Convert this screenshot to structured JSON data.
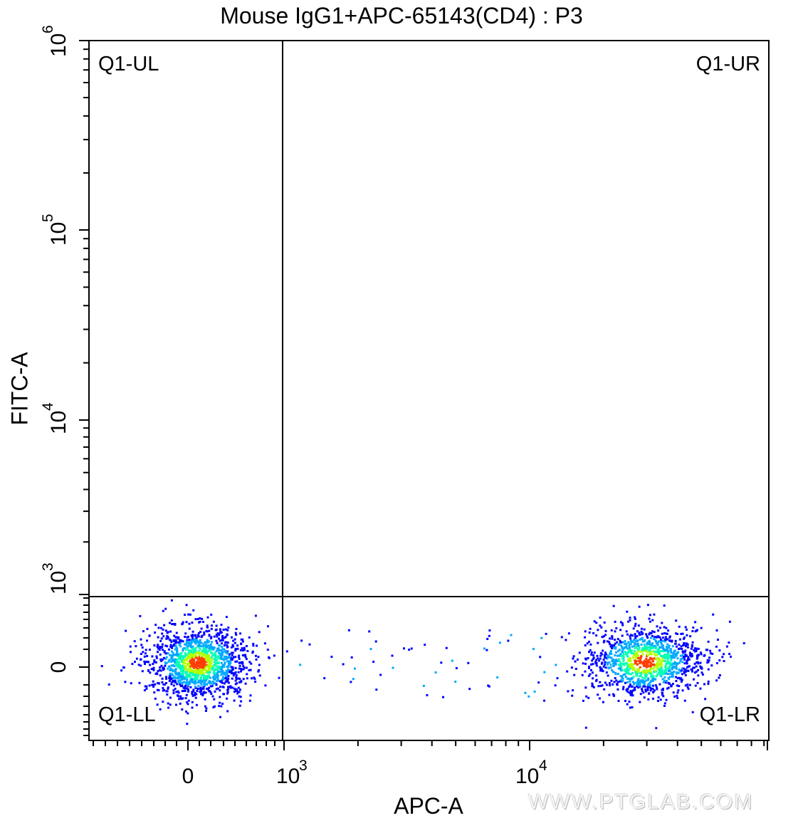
{
  "chart_data": {
    "type": "scatter",
    "title": "Mouse IgG1+APC-65143(CD4) : P3",
    "xlabel": "APC-A",
    "ylabel": "FITC-A",
    "x_scale": "biexponential",
    "y_scale": "biexponential",
    "x_tick_labels": [
      "0",
      "10^3",
      "10^4"
    ],
    "y_tick_labels": [
      "0",
      "10^3",
      "10^4",
      "10^5",
      "10^6"
    ],
    "quadrant_gate": {
      "name": "Q1",
      "x_threshold": 900,
      "y_threshold": 1000
    },
    "quadrants": [
      "Q1-UL",
      "Q1-UR",
      "Q1-LL",
      "Q1-LR"
    ],
    "populations": [
      {
        "quadrant": "Q1-LL",
        "x_center": 0,
        "y_center": 0
      },
      {
        "quadrant": "Q1-LR",
        "x_center": 28000,
        "y_center": 0
      }
    ],
    "density_colors": [
      "#0000ff",
      "#00a8ff",
      "#00ffb4",
      "#b4ff00",
      "#ff3c00"
    ],
    "grid": false,
    "legend": "none"
  },
  "watermark": "WWW.PTGLAB.COM"
}
